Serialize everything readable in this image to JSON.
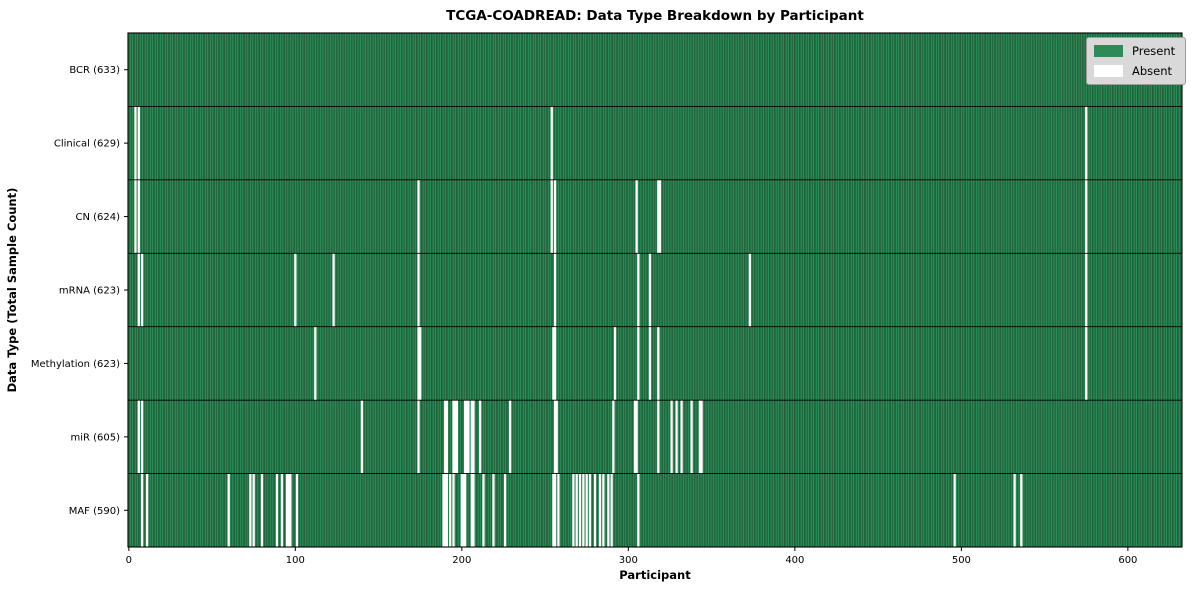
{
  "figure": {
    "title": "TCGA-COADREAD: Data Type Breakdown by Participant",
    "xlabel": "Participant",
    "ylabel": "Data Type (Total Sample Count)"
  },
  "legend": {
    "position": "upper right",
    "present_label": "Present",
    "absent_label": "Absent"
  },
  "colors": {
    "present": "#2E8B57",
    "absent": "#ffffff",
    "bar_edge": "#123a22",
    "axis": "#000000",
    "legend_bg": "#d9d9d9",
    "legend_border": "#9c9c9c"
  },
  "chart_data": {
    "type": "heatmap",
    "title": "TCGA-COADREAD: Data Type Breakdown by Participant",
    "xlabel": "Participant",
    "ylabel": "Data Type (Total Sample Count)",
    "legend_entries": [
      "Present",
      "Absent"
    ],
    "legend_position": "upper right",
    "grid": false,
    "n_participants": 633,
    "x_ticks": [
      0,
      100,
      200,
      300,
      400,
      500,
      600
    ],
    "xlim": [
      -0.5,
      632.5
    ],
    "rows": [
      {
        "label": "BCR (633)",
        "data_type": "BCR",
        "present_count": 633,
        "absent_participants": []
      },
      {
        "label": "Clinical (629)",
        "data_type": "Clinical",
        "present_count": 629,
        "absent_participants": [
          4,
          6,
          254,
          575
        ]
      },
      {
        "label": "CN (624)",
        "data_type": "CN",
        "present_count": 624,
        "absent_participants": [
          4,
          6,
          174,
          254,
          256,
          305,
          318,
          319,
          575
        ]
      },
      {
        "label": "mRNA (623)",
        "data_type": "mRNA",
        "present_count": 623,
        "absent_participants": [
          6,
          8,
          100,
          123,
          174,
          256,
          306,
          313,
          373,
          575
        ]
      },
      {
        "label": "Methylation (623)",
        "data_type": "Methylation",
        "present_count": 623,
        "absent_participants": [
          112,
          174,
          175,
          255,
          256,
          292,
          306,
          313,
          318,
          575
        ]
      },
      {
        "label": "miR (605)",
        "data_type": "miR",
        "present_count": 605,
        "absent_participants": [
          6,
          8,
          140,
          174,
          190,
          191,
          195,
          196,
          197,
          202,
          203,
          204,
          206,
          207,
          211,
          229,
          256,
          257,
          291,
          304,
          305,
          318,
          326,
          329,
          332,
          338,
          343,
          344
        ]
      },
      {
        "label": "MAF (590)",
        "data_type": "MAF",
        "present_count": 590,
        "absent_participants": [
          8,
          11,
          60,
          73,
          75,
          80,
          89,
          92,
          95,
          96,
          97,
          101,
          189,
          190,
          191,
          193,
          195,
          200,
          201,
          202,
          206,
          207,
          213,
          219,
          226,
          255,
          256,
          258,
          267,
          269,
          271,
          273,
          275,
          277,
          280,
          283,
          285,
          288,
          290,
          306,
          496,
          532,
          536
        ]
      }
    ]
  }
}
